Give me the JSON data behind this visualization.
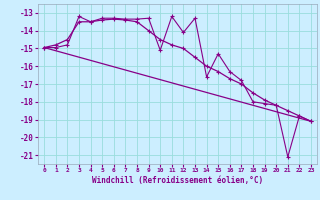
{
  "xlabel": "Windchill (Refroidissement éolien,°C)",
  "background_color": "#cceeff",
  "grid_color": "#99dddd",
  "line_color": "#880088",
  "xlim": [
    -0.5,
    23.5
  ],
  "ylim": [
    -21.5,
    -12.5
  ],
  "yticks": [
    -13,
    -14,
    -15,
    -16,
    -17,
    -18,
    -19,
    -20,
    -21
  ],
  "xticks": [
    0,
    1,
    2,
    3,
    4,
    5,
    6,
    7,
    8,
    9,
    10,
    11,
    12,
    13,
    14,
    15,
    16,
    17,
    18,
    19,
    20,
    21,
    22,
    23
  ],
  "series1_x": [
    0,
    1,
    2,
    3,
    4,
    5,
    6,
    7,
    8,
    9,
    10,
    11,
    12,
    13,
    14,
    15,
    16,
    17,
    18,
    19,
    20,
    21,
    22,
    23
  ],
  "series1_y": [
    -14.95,
    -14.95,
    -14.8,
    -13.2,
    -13.5,
    -13.3,
    -13.3,
    -13.35,
    -13.35,
    -13.3,
    -15.1,
    -13.2,
    -14.1,
    -13.3,
    -16.6,
    -15.3,
    -16.3,
    -16.8,
    -18.0,
    -18.1,
    -18.2,
    -21.1,
    -18.8,
    -19.1
  ],
  "series2_x": [
    0,
    23
  ],
  "series2_y": [
    -14.95,
    -19.1
  ],
  "series3_x": [
    0,
    1,
    2,
    3,
    4,
    5,
    6,
    7,
    8,
    9,
    10,
    11,
    12,
    13,
    14,
    15,
    16,
    17,
    18,
    19,
    20,
    21,
    22,
    23
  ],
  "series3_y": [
    -14.95,
    -14.8,
    -14.5,
    -13.5,
    -13.5,
    -13.4,
    -13.35,
    -13.4,
    -13.5,
    -14.0,
    -14.5,
    -14.8,
    -15.0,
    -15.5,
    -16.0,
    -16.3,
    -16.7,
    -17.0,
    -17.5,
    -17.9,
    -18.2,
    -18.5,
    -18.8,
    -19.1
  ]
}
